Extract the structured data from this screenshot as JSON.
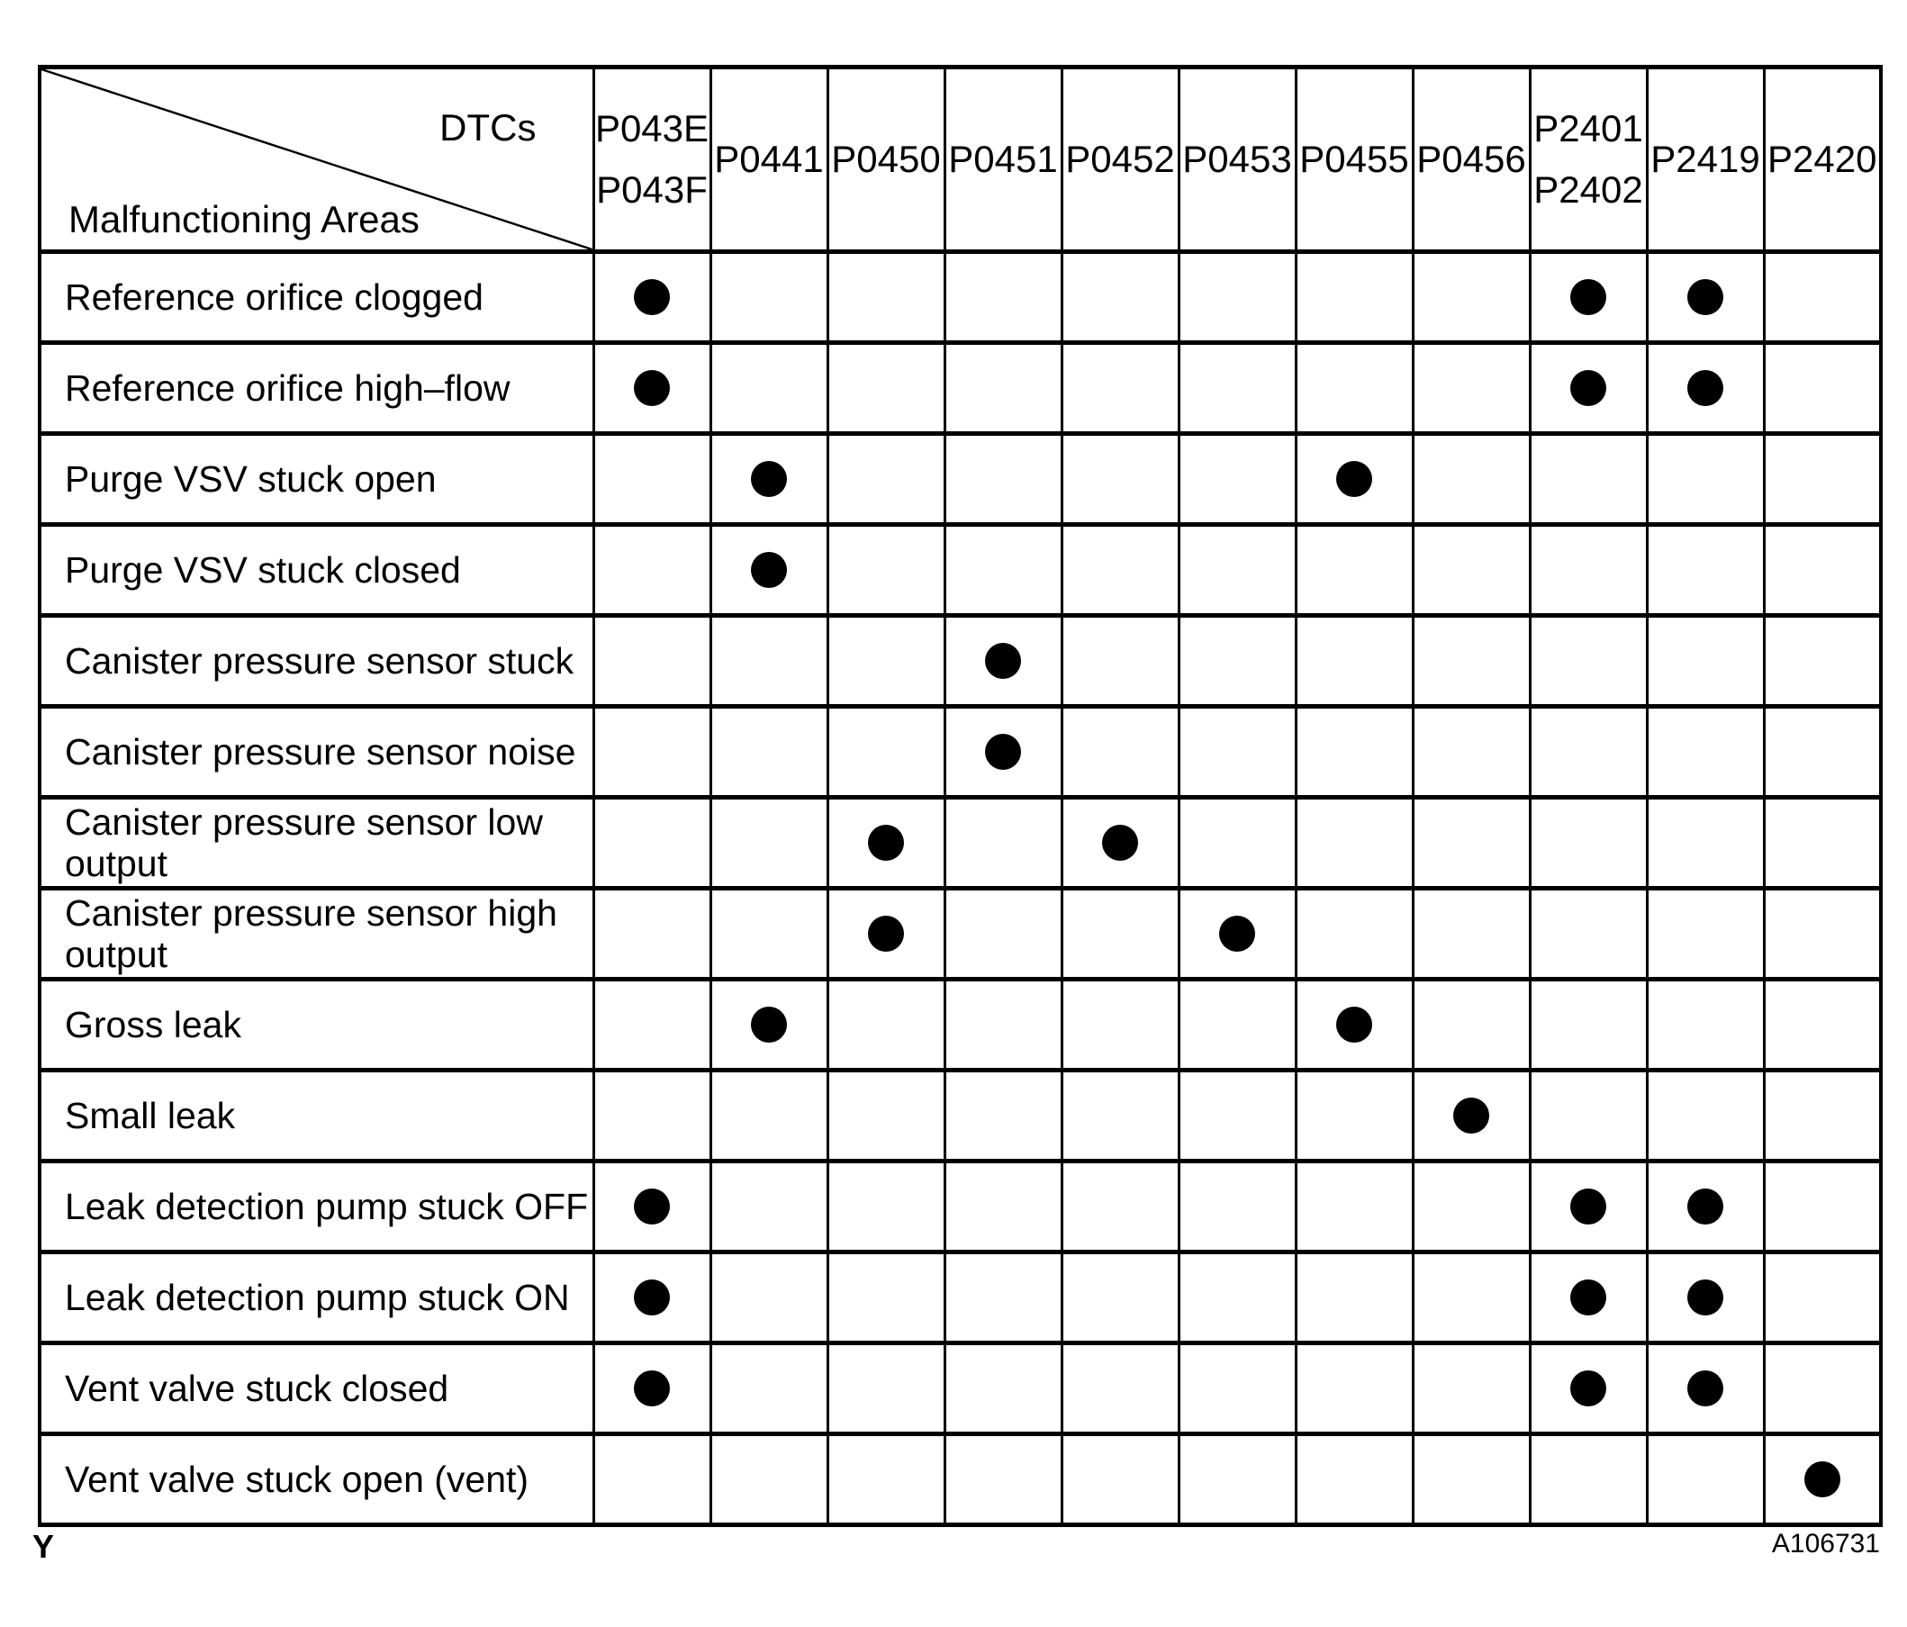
{
  "colors": {
    "line": "#000000",
    "background": "#ffffff",
    "dot": "#000000"
  },
  "header": {
    "corner_top_label": "DTCs",
    "corner_bottom_label": "Malfunctioning Areas"
  },
  "columns": [
    {
      "id": "P043E-P043F",
      "lines": [
        "P043E",
        "P043F"
      ]
    },
    {
      "id": "P0441",
      "lines": [
        "P0441"
      ]
    },
    {
      "id": "P0450",
      "lines": [
        "P0450"
      ]
    },
    {
      "id": "P0451",
      "lines": [
        "P0451"
      ]
    },
    {
      "id": "P0452",
      "lines": [
        "P0452"
      ]
    },
    {
      "id": "P0453",
      "lines": [
        "P0453"
      ]
    },
    {
      "id": "P0455",
      "lines": [
        "P0455"
      ]
    },
    {
      "id": "P0456",
      "lines": [
        "P0456"
      ]
    },
    {
      "id": "P2401-P2402",
      "lines": [
        "P2401",
        "P2402"
      ]
    },
    {
      "id": "P2419",
      "lines": [
        "P2419"
      ]
    },
    {
      "id": "P2420",
      "lines": [
        "P2420"
      ]
    }
  ],
  "rows": [
    {
      "label": "Reference orifice clogged",
      "dots": [
        0,
        8,
        9
      ]
    },
    {
      "label": "Reference orifice high–flow",
      "dots": [
        0,
        8,
        9
      ]
    },
    {
      "label": "Purge VSV stuck open",
      "dots": [
        1,
        6
      ]
    },
    {
      "label": "Purge VSV stuck closed",
      "dots": [
        1
      ]
    },
    {
      "label": "Canister pressure sensor stuck",
      "dots": [
        3
      ]
    },
    {
      "label": "Canister pressure sensor noise",
      "dots": [
        3
      ]
    },
    {
      "label": "Canister pressure sensor low output",
      "dots": [
        2,
        4
      ]
    },
    {
      "label": "Canister pressure sensor high output",
      "dots": [
        2,
        5
      ]
    },
    {
      "label": "Gross leak",
      "dots": [
        1,
        6
      ]
    },
    {
      "label": "Small leak",
      "dots": [
        7
      ]
    },
    {
      "label": "Leak detection pump stuck OFF",
      "dots": [
        0,
        8,
        9
      ]
    },
    {
      "label": "Leak detection pump stuck ON",
      "dots": [
        0,
        8,
        9
      ]
    },
    {
      "label": "Vent valve stuck closed",
      "dots": [
        0,
        8,
        9
      ]
    },
    {
      "label": "Vent valve stuck open (vent)",
      "dots": [
        10
      ]
    }
  ],
  "footer": {
    "page_marker": "Y",
    "figure_id": "A106731"
  }
}
